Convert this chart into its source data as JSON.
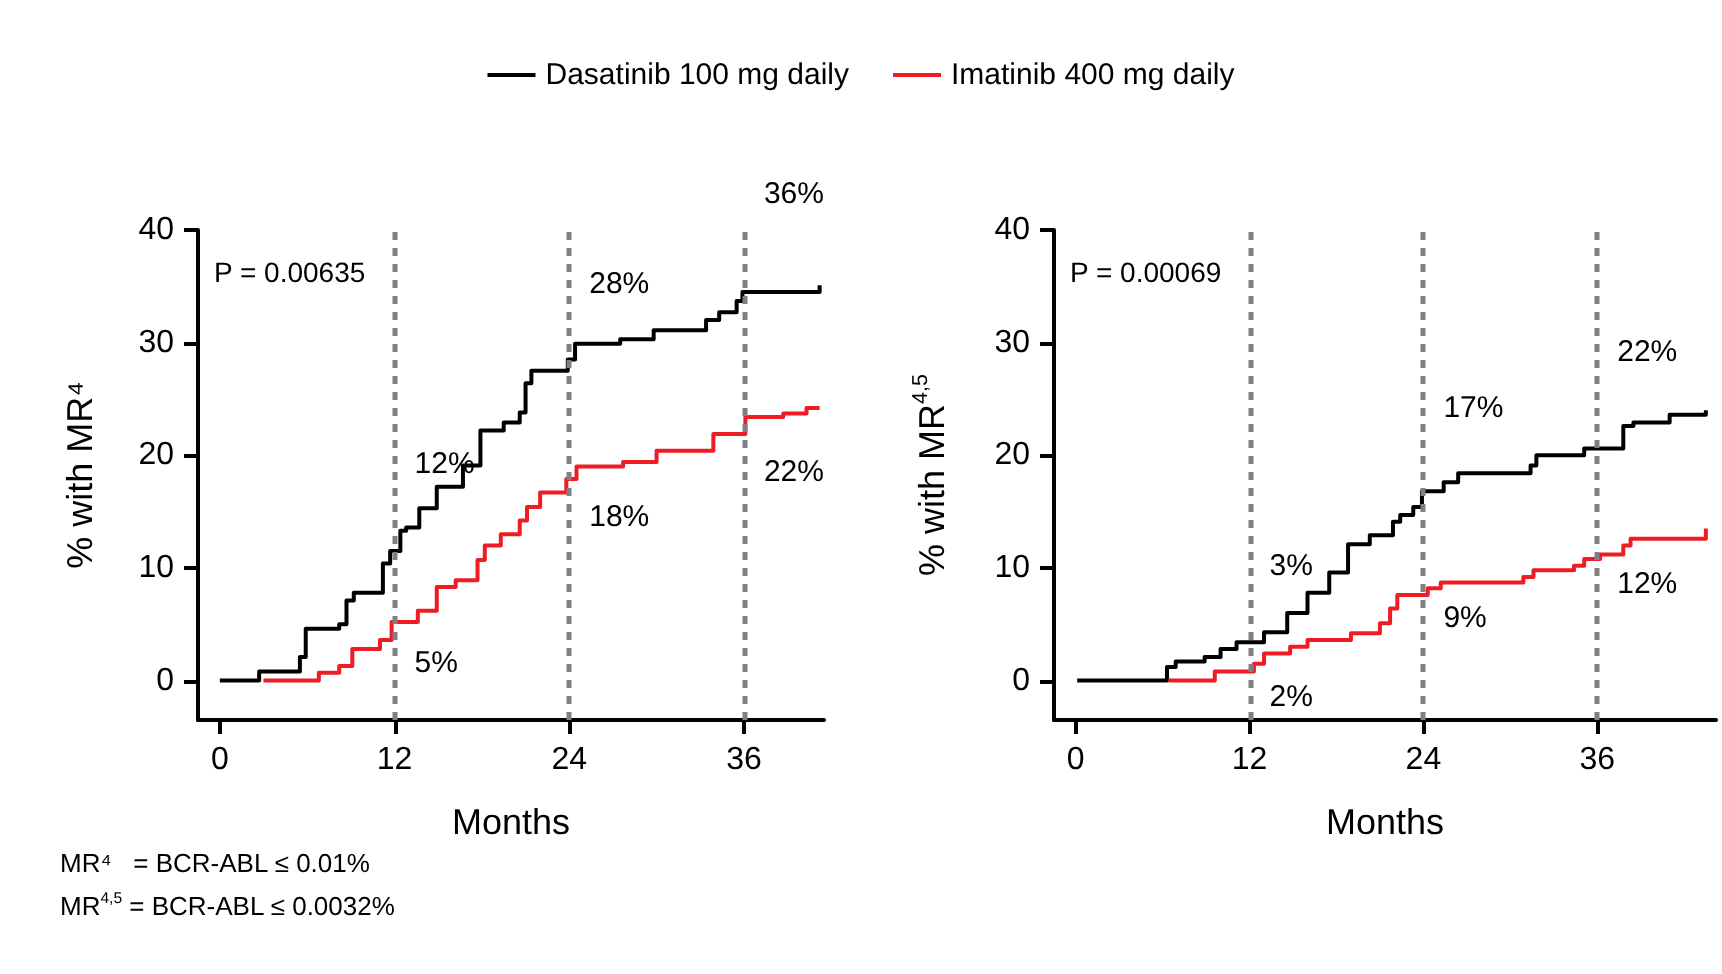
{
  "chart_data": [
    {
      "type": "step",
      "ylabel": "% with MR⁴",
      "xlabel": "Months",
      "xlim": [
        -1.5,
        41.5
      ],
      "ylim": [
        -3.5,
        40
      ],
      "xticks": [
        0,
        12,
        24,
        36
      ],
      "yticks": [
        0,
        10,
        20,
        30,
        40
      ],
      "grid": false,
      "legend": "top",
      "marker": "none",
      "line_style": "solid",
      "series": [
        {
          "name": "Dasatinib 100 mg daily",
          "color": "#000000",
          "x": [
            0,
            2.7,
            5.5,
            5.9,
            8.2,
            8.7,
            9.2,
            11.2,
            11.7,
            12.4,
            12.8,
            13.7,
            14.9,
            16.7,
            17.9,
            19.5,
            20.6,
            21,
            21.4,
            23.9,
            24.4,
            27.5,
            29.8,
            33.4,
            34.3,
            35.5,
            35.9,
            41.2
          ],
          "values": [
            0,
            0.8,
            2.1,
            4.6,
            5,
            7.1,
            7.8,
            10.4,
            11.5,
            13.3,
            13.6,
            15.3,
            17.2,
            19.1,
            22.2,
            22.9,
            23.8,
            26.4,
            27.5,
            28.5,
            29.9,
            30.3,
            31.1,
            32,
            32.7,
            33.7,
            34.5,
            35.1
          ]
        },
        {
          "name": "Imatinib 400 mg daily",
          "color": "#ee1c25",
          "x": [
            3,
            6.8,
            8.2,
            9.1,
            11,
            11.8,
            13.6,
            14.9,
            16.2,
            17.7,
            18.2,
            19.3,
            20.6,
            21.1,
            22,
            23.8,
            24.5,
            27.7,
            30,
            33.9,
            36.1,
            38.7,
            40.3,
            41.2
          ],
          "values": [
            0,
            0.7,
            1.3,
            2.8,
            3.6,
            5.2,
            6.2,
            8.3,
            8.9,
            10.7,
            12,
            13,
            14.2,
            15.4,
            16.7,
            17.9,
            19,
            19.4,
            20.4,
            21.9,
            23.4,
            23.7,
            24.2,
            24.2
          ]
        }
      ],
      "ref_lines": [
        {
          "axis": "x",
          "value": 12,
          "color": "#808080",
          "line_style": "dashed"
        },
        {
          "axis": "x",
          "value": 24,
          "color": "#808080",
          "line_style": "dashed"
        },
        {
          "axis": "x",
          "value": 36,
          "color": "#808080",
          "line_style": "dashed"
        }
      ],
      "annotations": [
        "P = 0.00635",
        "MR⁴   = BCR-ABL ≤ 0.01%",
        "MR$^{4,5}$ = BCR-ABL ≤ 0.0032%",
        {
          "text": "12%",
          "x": 12,
          "y": 12
        },
        {
          "text": "5%",
          "x": 12,
          "y": 5
        },
        {
          "text": "28%",
          "x": 24,
          "y": 28
        },
        {
          "text": "18%",
          "x": 24,
          "y": 18
        },
        {
          "text": "36%",
          "x": 36,
          "y": 36
        },
        {
          "text": "22%",
          "x": 36,
          "y": 22
        }
      ]
    },
    {
      "type": "step",
      "ylabel": "% with MR$^{4,5}$",
      "xlabel": "Months",
      "xlim": [
        -1.5,
        44.2
      ],
      "ylim": [
        -3.5,
        40
      ],
      "xticks": [
        0,
        12,
        24,
        36
      ],
      "yticks": [
        0,
        10,
        20,
        30,
        40
      ],
      "grid": false,
      "marker": "none",
      "line_style": "solid",
      "series": [
        {
          "color": "#000000",
          "x": [
            0.1,
            6.3,
            6.9,
            8.9,
            10,
            11.1,
            13,
            14.6,
            16,
            17.5,
            18.8,
            20.3,
            21.9,
            22.4,
            23.3,
            23.9,
            25.4,
            26.4,
            31.4,
            31.8,
            35.1,
            37.8,
            38.5,
            41,
            43.5
          ],
          "values": [
            0,
            1.2,
            1.7,
            2.1,
            2.8,
            3.4,
            4.3,
            6,
            7.8,
            9.6,
            12.1,
            12.9,
            14.1,
            14.7,
            15.4,
            16.8,
            17.6,
            18.4,
            19.1,
            20,
            20.6,
            22.6,
            22.9,
            23.6,
            24
          ]
        },
        {
          "color": "#ee1c25",
          "x": [
            6.4,
            9.6,
            12.3,
            13,
            14.8,
            16,
            19,
            21,
            21.7,
            22.2,
            24.3,
            25.2,
            30.9,
            31.6,
            34.4,
            35.1,
            36.2,
            37.8,
            38.3,
            43.5
          ],
          "values": [
            0,
            0.8,
            1.5,
            2.4,
            3,
            3.6,
            4.2,
            5.1,
            6.4,
            7.6,
            8.2,
            8.7,
            9.2,
            9.8,
            10.2,
            10.8,
            11.2,
            12,
            12.6,
            13.5
          ]
        }
      ],
      "ref_lines": [
        {
          "axis": "x",
          "value": 12,
          "color": "#808080",
          "line_style": "dashed"
        },
        {
          "axis": "x",
          "value": 24,
          "color": "#808080",
          "line_style": "dashed"
        },
        {
          "axis": "x",
          "value": 36,
          "color": "#808080",
          "line_style": "dashed"
        }
      ],
      "annotations": [
        "P = 0.00069",
        {
          "text": "3%",
          "x": 12,
          "y": 3
        },
        {
          "text": "2%",
          "x": 12,
          "y": 2
        },
        {
          "text": "17%",
          "x": 24,
          "y": 17
        },
        {
          "text": "9%",
          "x": 24,
          "y": 9
        },
        {
          "text": "22%",
          "x": 36,
          "y": 22
        },
        {
          "text": "12%",
          "x": 36,
          "y": 12
        }
      ]
    }
  ]
}
